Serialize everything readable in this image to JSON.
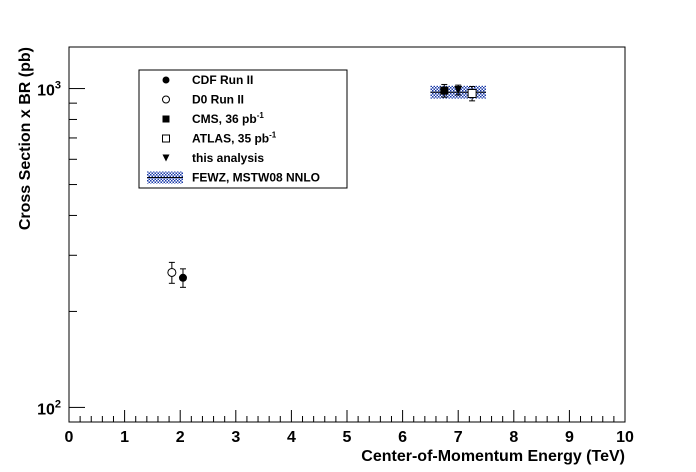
{
  "chart_data": {
    "type": "scatter",
    "title": "",
    "xlabel": "Center-of-Momentum Energy (TeV)",
    "ylabel": "Cross Section x BR (pb)",
    "xlim": [
      0,
      10
    ],
    "ylim": [
      90,
      1350
    ],
    "ylog": true,
    "x_ticks": [
      "0",
      "1",
      "2",
      "3",
      "4",
      "5",
      "6",
      "7",
      "8",
      "9",
      "10"
    ],
    "y_ticks": [
      {
        "value": 100,
        "base": "10",
        "exp": "2"
      },
      {
        "value": 1000,
        "base": "10",
        "exp": "3"
      }
    ],
    "legend_position": "top-left",
    "series": [
      {
        "name": "CDF Run II",
        "marker": "filled-circle",
        "points": [
          {
            "x": 2.05,
            "y": 255,
            "yerr_low": 17,
            "yerr_high": 17
          }
        ]
      },
      {
        "name": "D0 Run II",
        "marker": "open-circle",
        "points": [
          {
            "x": 1.85,
            "y": 265,
            "yerr_low": 20,
            "yerr_high": 20
          }
        ]
      },
      {
        "name": "CMS, 36 pb",
        "name_sup": "-1",
        "marker": "filled-square",
        "points": [
          {
            "x": 6.75,
            "y": 985,
            "yerr_low": 45,
            "yerr_high": 45
          }
        ]
      },
      {
        "name": "ATLAS, 35 pb",
        "name_sup": "-1",
        "marker": "open-square",
        "points": [
          {
            "x": 7.25,
            "y": 965,
            "yerr_low": 50,
            "yerr_high": 50
          }
        ]
      },
      {
        "name": "this analysis",
        "marker": "filled-triangle-down",
        "points": [
          {
            "x": 7.0,
            "y": 990,
            "yerr_low": 35,
            "yerr_high": 35
          }
        ]
      },
      {
        "name": "FEWZ, MSTW08 NNLO",
        "marker": "hatched-band",
        "band": {
          "x_low": 6.5,
          "x_high": 7.5,
          "y_low": 930,
          "y_high": 1020
        }
      }
    ]
  }
}
